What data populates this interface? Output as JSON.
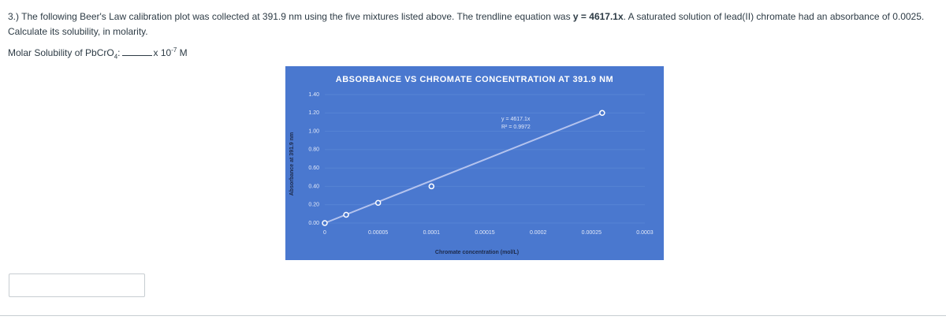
{
  "question": {
    "text_before": "3.) The following Beer's Law calibration plot was collected at 391.9 nm using the five mixtures listed above. The trendline equation was ",
    "text_bold": "y = 4617.1x",
    "text_after": ". A saturated solution of lead(II) chromate had an absorbance of 0.0025. Calculate its solubility, in molarity."
  },
  "answer_label": {
    "prefix": "Molar Solubility of PbCrO",
    "subscript": "4",
    "colon": ":",
    "times": "x 10",
    "exponent": "-7",
    "unit": "M"
  },
  "chart_data": {
    "type": "scatter",
    "title": "ABSORBANCE VS CHROMATE CONCENTRATION AT 391.9 NM",
    "x_label": "Chromate concentration (mol/L)",
    "y_label": "Absorbance at 391.9 nm",
    "x": [
      0,
      2e-05,
      5e-05,
      0.0001,
      0.00026
    ],
    "values": [
      0,
      0.09,
      0.22,
      0.4,
      1.2
    ],
    "color": "#ffffff",
    "background": "#4a78cf",
    "grid": true,
    "xlim": [
      0,
      0.0003
    ],
    "xticks": [
      0,
      5e-05,
      0.0001,
      0.00015,
      0.0002,
      0.00025,
      0.0003
    ],
    "ylim": [
      0,
      1.4
    ],
    "yticks": [
      {
        "value": 0,
        "label": "0.00"
      },
      {
        "value": 0.2,
        "label": "0.20"
      },
      {
        "value": 0.4,
        "label": "0.40"
      },
      {
        "value": 0.6,
        "label": "0.60"
      },
      {
        "value": 0.8,
        "label": "0.80"
      },
      {
        "value": 1,
        "label": "1.00"
      },
      {
        "value": 1.2,
        "label": "1.20"
      },
      {
        "value": 1.4,
        "label": "1.40"
      }
    ],
    "trendline": {
      "slope": 4617.1,
      "label": "y = 4617.1x",
      "r2_label": "R² = 0.9972",
      "color": "#b4c3ee"
    }
  }
}
